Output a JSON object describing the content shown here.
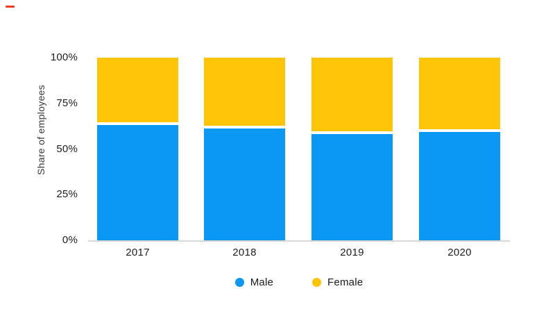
{
  "page": {
    "background": "#ffffff"
  },
  "decorations": {
    "corner_mark_color": "#ee3a24"
  },
  "chart_data": {
    "type": "bar",
    "stacked": true,
    "title": "",
    "categories": [
      "2017",
      "2018",
      "2019",
      "2020"
    ],
    "series": [
      {
        "name": "Male",
        "color": "#0b97f4",
        "values": [
          64,
          62,
          59,
          60
        ]
      },
      {
        "name": "Female",
        "color": "#fdc408",
        "values": [
          36,
          38,
          41,
          40
        ]
      }
    ],
    "xlabel": "",
    "ylabel": "Share of employees",
    "ylim": [
      0,
      100
    ],
    "y_ticks": [
      "0%",
      "25%",
      "50%",
      "75%",
      "100%"
    ],
    "unit": "%",
    "grid": false,
    "axis_line_color": "#d8d8d8",
    "segment_separator_color": "#ffffff",
    "legend_position": "bottom"
  }
}
